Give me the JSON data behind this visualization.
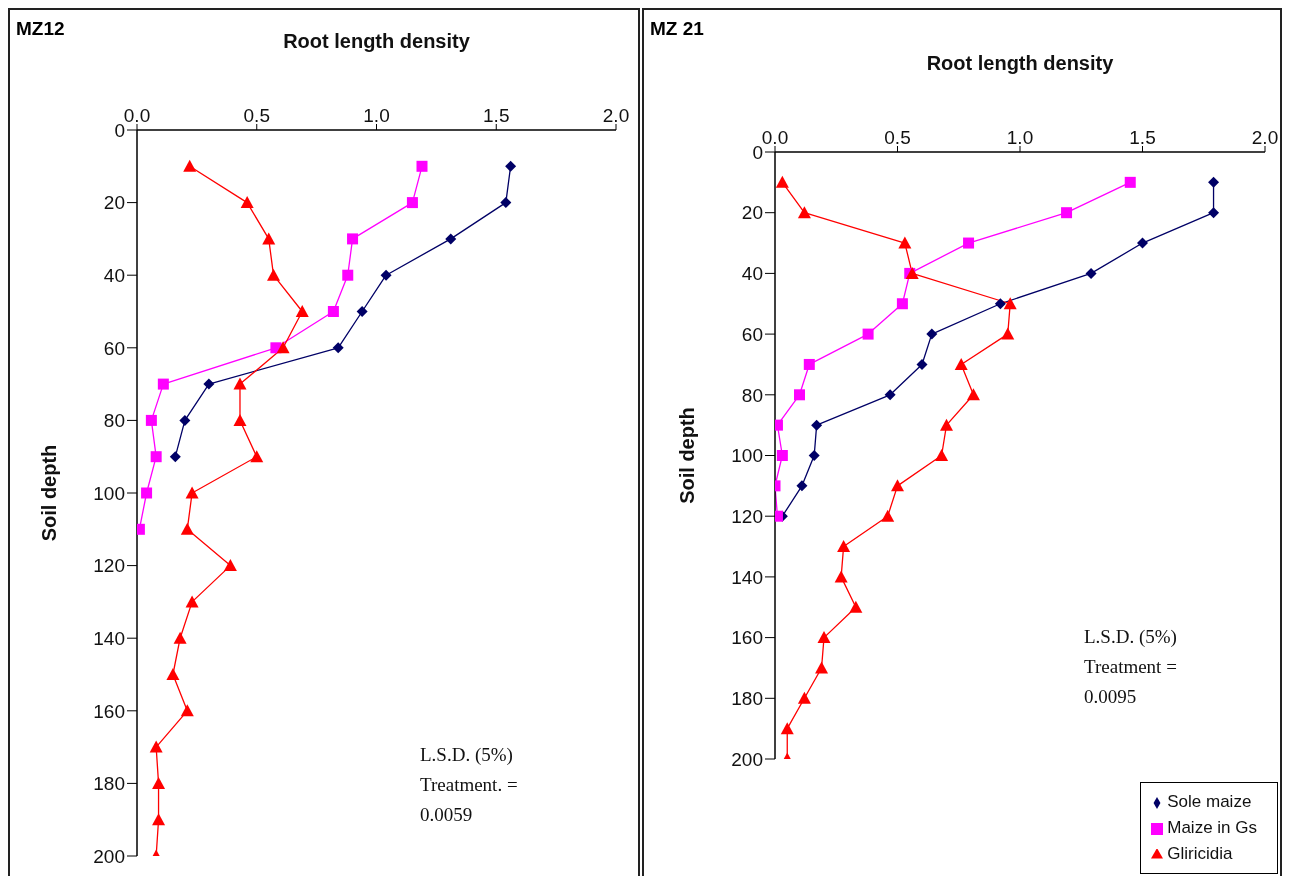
{
  "chart_data": [
    {
      "type": "line",
      "title": "MZ12",
      "xlabel": "Root length density",
      "ylabel": "Soil depth",
      "xlim": [
        0,
        2
      ],
      "xticks": [
        {
          "value": 0,
          "label": "0.0"
        },
        {
          "value": 0.5,
          "label": "0.5"
        },
        {
          "value": 1,
          "label": "1.0"
        },
        {
          "value": 1.5,
          "label": "1.5"
        },
        {
          "value": 2,
          "label": "2.0"
        }
      ],
      "ylim": [
        200,
        0
      ],
      "yticks": [
        0,
        20,
        40,
        60,
        80,
        100,
        120,
        140,
        160,
        180,
        200
      ],
      "grid": false,
      "legend": false,
      "annotations": [
        "L.S.D. (5%)\nTreatment. =\n0.0059"
      ],
      "series": [
        {
          "color": "#000066",
          "marker": "diamond",
          "x": [
            1.56,
            1.54,
            1.31,
            1.04,
            0.94,
            0.84,
            0.3,
            0.2,
            0.16
          ],
          "values": [
            10,
            20,
            30,
            40,
            50,
            60,
            70,
            80,
            90
          ]
        },
        {
          "color": "#ff00ff",
          "marker": "square",
          "x": [
            1.19,
            1.15,
            0.9,
            0.88,
            0.82,
            0.58,
            0.11,
            0.06,
            0.08,
            0.04,
            0.01
          ],
          "values": [
            10,
            20,
            30,
            40,
            50,
            60,
            70,
            80,
            90,
            100,
            110
          ]
        },
        {
          "color": "#ff0000",
          "marker": "triangle",
          "x": [
            0.22,
            0.46,
            0.55,
            0.57,
            0.69,
            0.61,
            0.43,
            0.43,
            0.5,
            0.23,
            0.21,
            0.39,
            0.23,
            0.18,
            0.15,
            0.21,
            0.08,
            0.09,
            0.09,
            0.08
          ],
          "values": [
            10,
            20,
            30,
            40,
            50,
            60,
            70,
            80,
            90,
            100,
            110,
            120,
            130,
            140,
            150,
            160,
            170,
            180,
            190,
            200
          ]
        }
      ]
    },
    {
      "type": "line",
      "title": "MZ 21",
      "xlabel": "Root length density",
      "ylabel": "Soil depth",
      "xlim": [
        0,
        2
      ],
      "xticks": [
        {
          "value": 0,
          "label": "0.0"
        },
        {
          "value": 0.5,
          "label": "0.5"
        },
        {
          "value": 1,
          "label": "1.0"
        },
        {
          "value": 1.5,
          "label": "1.5"
        },
        {
          "value": 2,
          "label": "2.0"
        }
      ],
      "ylim": [
        200,
        0
      ],
      "yticks": [
        0,
        20,
        40,
        60,
        80,
        100,
        120,
        140,
        160,
        180,
        200
      ],
      "grid": false,
      "legend": "bottom right",
      "annotations": [
        "L.S.D. (5%)\nTreatment =\n0.0095"
      ],
      "series": [
        {
          "name": "Sole maize",
          "color": "#000066",
          "marker": "diamond",
          "x": [
            1.79,
            1.79,
            1.5,
            1.29,
            0.92,
            0.64,
            0.6,
            0.47,
            0.17,
            0.16,
            0.11,
            0.03
          ],
          "values": [
            10,
            20,
            30,
            40,
            50,
            60,
            70,
            80,
            90,
            100,
            110,
            120
          ]
        },
        {
          "name": "Maize in Gs",
          "color": "#ff00ff",
          "marker": "square",
          "x": [
            1.45,
            1.19,
            0.79,
            0.55,
            0.52,
            0.38,
            0.14,
            0.1,
            0.01,
            0.03,
            0.0,
            0.01
          ],
          "values": [
            10,
            20,
            30,
            40,
            50,
            60,
            70,
            80,
            90,
            100,
            110,
            120
          ]
        },
        {
          "name": "Gliricidia",
          "color": "#ff0000",
          "marker": "triangle",
          "x": [
            0.03,
            0.12,
            0.53,
            0.56,
            0.96,
            0.95,
            0.76,
            0.81,
            0.7,
            0.68,
            0.5,
            0.46,
            0.28,
            0.27,
            0.33,
            0.2,
            0.19,
            0.12,
            0.05,
            0.05
          ],
          "values": [
            10,
            20,
            30,
            40,
            50,
            60,
            70,
            80,
            90,
            100,
            110,
            120,
            130,
            140,
            150,
            160,
            170,
            180,
            190,
            200
          ]
        }
      ]
    }
  ]
}
